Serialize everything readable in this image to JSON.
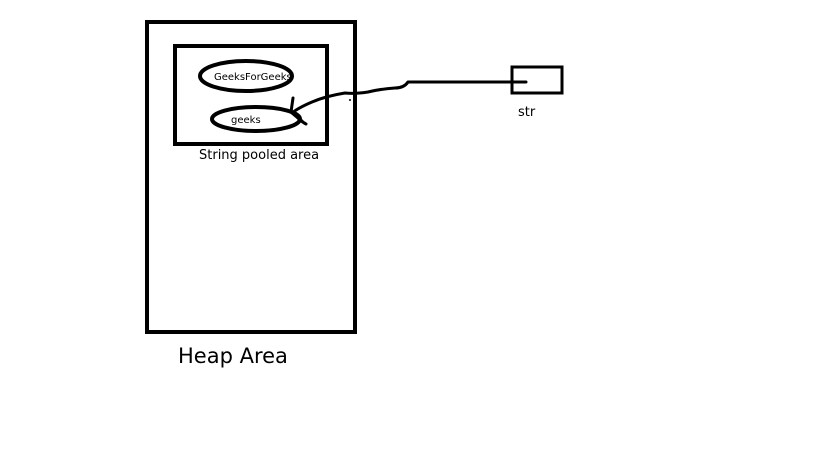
{
  "diagram": {
    "heap": {
      "label": "Heap Area"
    },
    "string_pool": {
      "label": "String pooled area",
      "objects": [
        {
          "label": "GeeksForGeeks"
        },
        {
          "label": "geeks"
        }
      ]
    },
    "reference": {
      "label": "str",
      "points_to": "geeks"
    }
  },
  "colors": {
    "stroke": "#000000",
    "background": "#ffffff"
  }
}
